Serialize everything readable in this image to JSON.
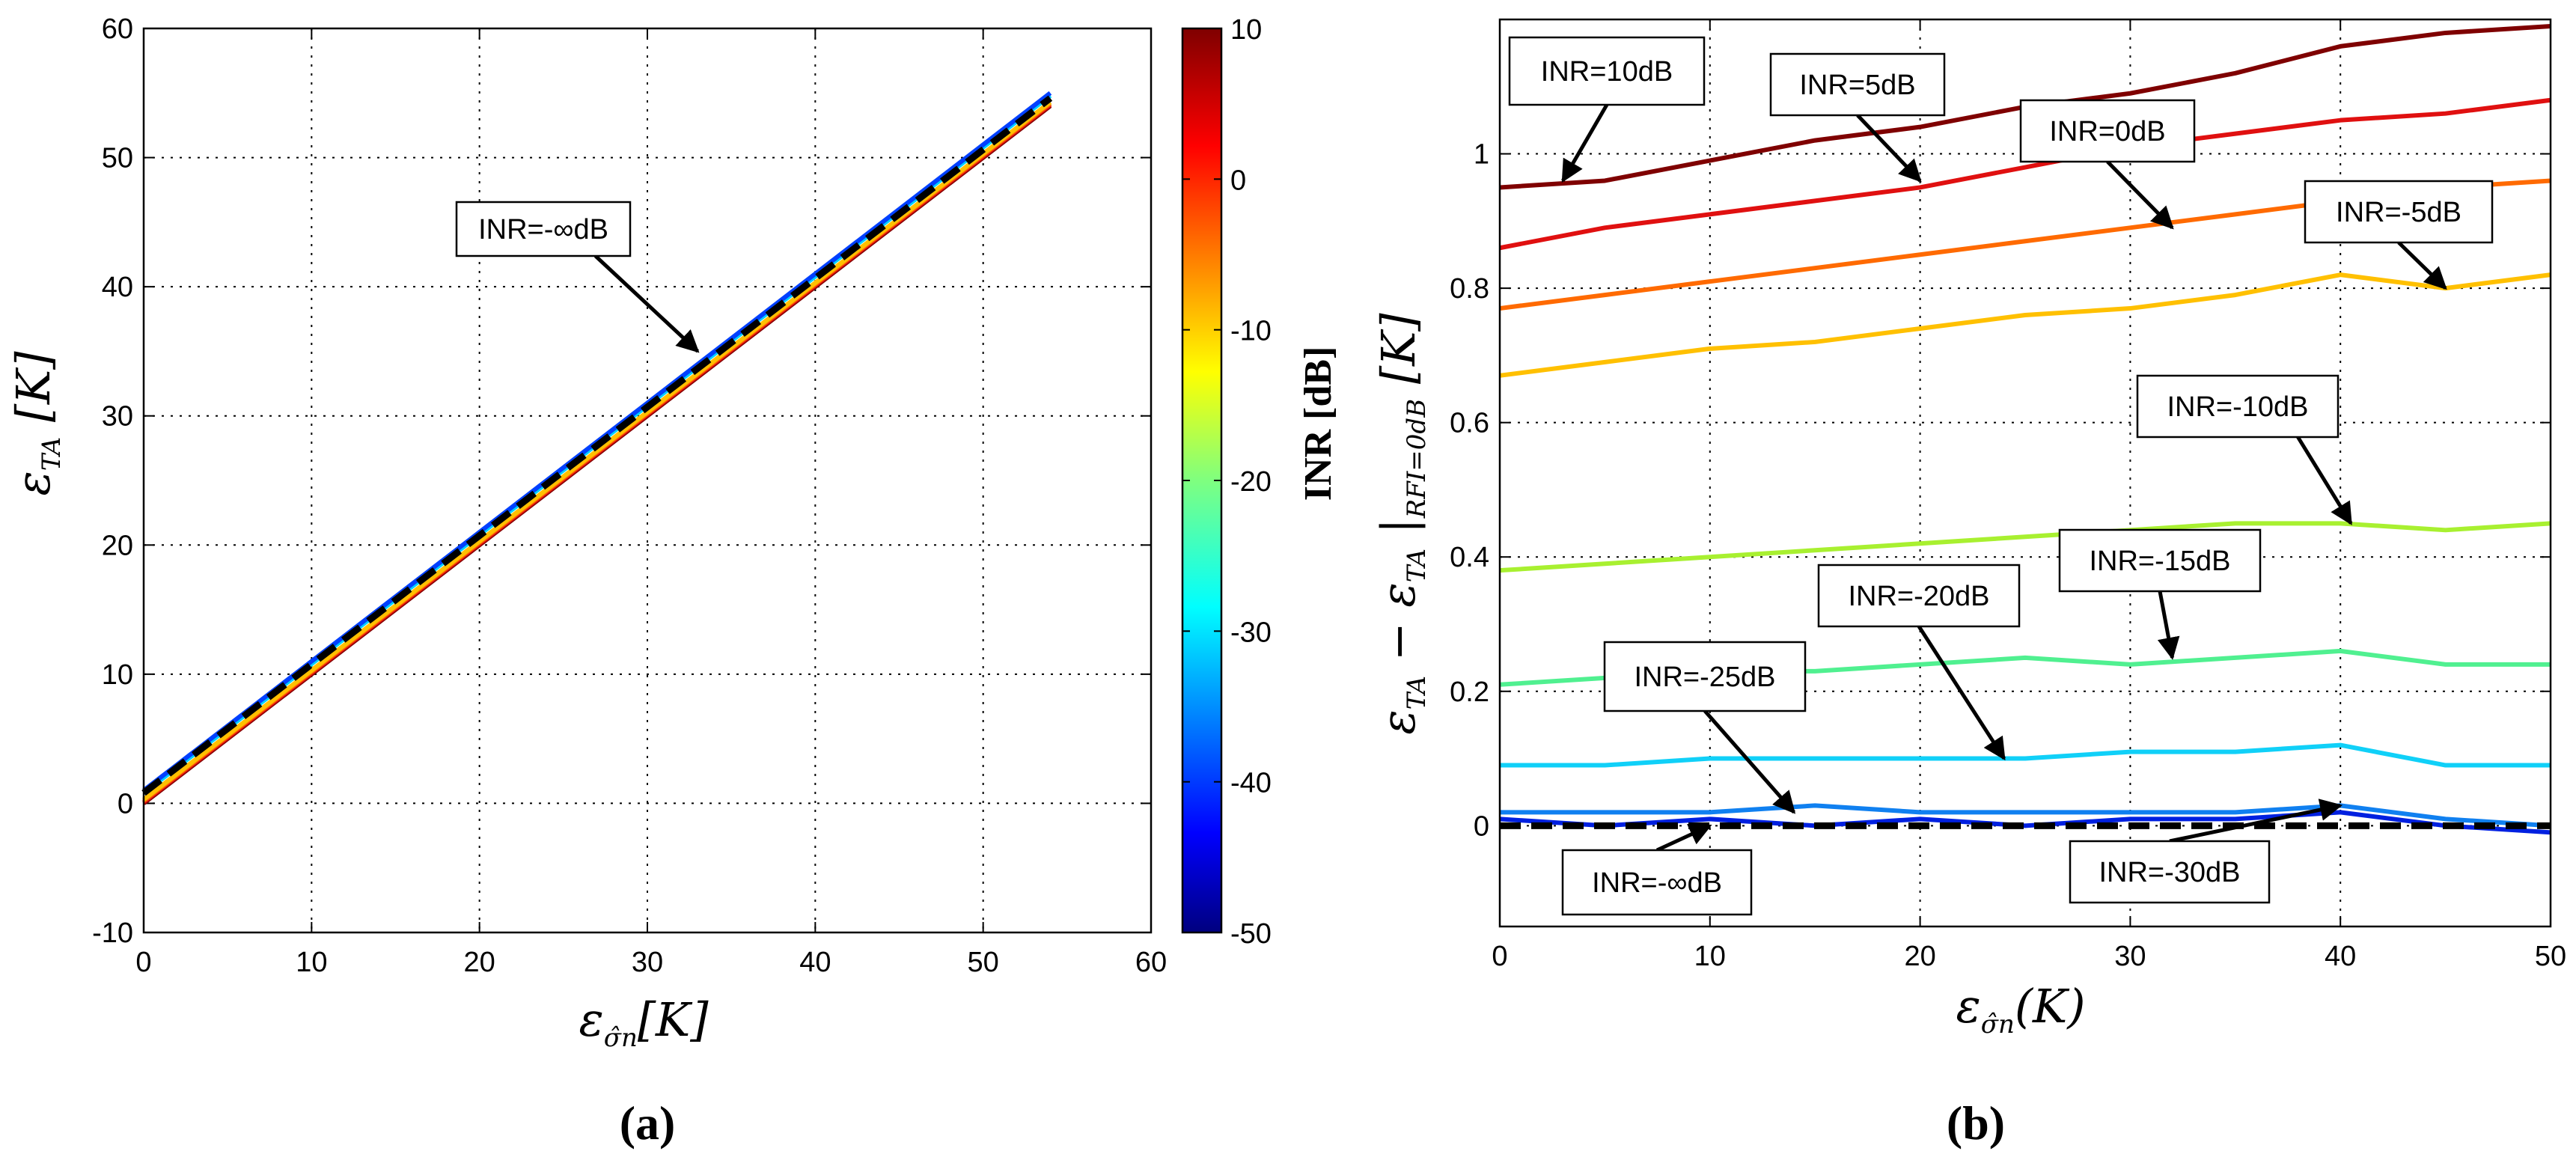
{
  "chart_data": [
    {
      "type": "line",
      "panel_label": "(a)",
      "xlabel": "ε_σn [K]",
      "ylabel": "ε_TA [K]",
      "xlim": [
        0,
        60
      ],
      "ylim": [
        -10,
        60
      ],
      "xticks": [
        "0",
        "10",
        "20",
        "30",
        "40",
        "50",
        "60"
      ],
      "yticks": [
        "-10",
        "0",
        "10",
        "20",
        "30",
        "40",
        "50",
        "60"
      ],
      "grid": true,
      "series": [
        {
          "name": "INR=10dB",
          "color": "#7f0000",
          "x": [
            0,
            54
          ],
          "y": [
            0.0,
            54.0
          ]
        },
        {
          "name": "INR=5dB",
          "color": "#e01010",
          "x": [
            0,
            54
          ],
          "y": [
            0.1,
            54.1
          ]
        },
        {
          "name": "INR=0dB",
          "color": "#ff6a00",
          "x": [
            0,
            54
          ],
          "y": [
            0.2,
            54.2
          ]
        },
        {
          "name": "INR=-5dB",
          "color": "#ffc000",
          "x": [
            0,
            54
          ],
          "y": [
            0.3,
            54.3
          ]
        },
        {
          "name": "INR=-20dB",
          "color": "#00d0ff",
          "x": [
            0,
            54
          ],
          "y": [
            0.8,
            54.8
          ]
        },
        {
          "name": "INR=-30dB",
          "color": "#0040ff",
          "x": [
            0,
            54
          ],
          "y": [
            1.0,
            55.0
          ]
        },
        {
          "name": "INR=-∞dB",
          "color": "#000000",
          "dashed": true,
          "x": [
            0,
            54
          ],
          "y": [
            0.8,
            54.6
          ]
        }
      ],
      "annotations": [
        {
          "text": "INR=-∞dB",
          "target": [
            33,
            35
          ]
        }
      ],
      "colorbar": {
        "label": "INR [dB]",
        "range": [
          -50,
          10
        ],
        "ticks": [
          "10",
          "0",
          "-10",
          "-20",
          "-30",
          "-40",
          "-50"
        ],
        "colormap": "jet"
      }
    },
    {
      "type": "line",
      "panel_label": "(b)",
      "xlabel": "ε_σn (K)",
      "ylabel": "ε_TA − ε_TA |RFI=0dB [K]",
      "ylabel_sub": "RFI=0dB",
      "xlim": [
        0,
        50
      ],
      "ylim": [
        -0.15,
        1.2
      ],
      "xticks": [
        "0",
        "10",
        "20",
        "30",
        "40",
        "50"
      ],
      "yticks": [
        "0",
        "0.2",
        "0.4",
        "0.6",
        "0.8",
        "1"
      ],
      "grid": true,
      "series": [
        {
          "name": "INR=10dB",
          "color": "#7f0000",
          "x": [
            0,
            5,
            10,
            15,
            20,
            25,
            30,
            35,
            40,
            45,
            50
          ],
          "y": [
            0.95,
            0.96,
            0.99,
            1.02,
            1.04,
            1.07,
            1.09,
            1.12,
            1.16,
            1.18,
            1.19
          ]
        },
        {
          "name": "INR=5dB",
          "color": "#e01010",
          "x": [
            0,
            5,
            10,
            15,
            20,
            25,
            30,
            35,
            40,
            45,
            50
          ],
          "y": [
            0.86,
            0.89,
            0.91,
            0.93,
            0.95,
            0.98,
            1.01,
            1.03,
            1.05,
            1.06,
            1.08
          ]
        },
        {
          "name": "INR=0dB",
          "color": "#ff6a00",
          "x": [
            0,
            5,
            10,
            15,
            20,
            25,
            30,
            35,
            40,
            45,
            50
          ],
          "y": [
            0.77,
            0.79,
            0.81,
            0.83,
            0.85,
            0.87,
            0.89,
            0.91,
            0.93,
            0.95,
            0.96
          ]
        },
        {
          "name": "INR=-5dB",
          "color": "#ffc000",
          "x": [
            0,
            5,
            10,
            15,
            20,
            25,
            30,
            35,
            40,
            45,
            50
          ],
          "y": [
            0.67,
            0.69,
            0.71,
            0.72,
            0.74,
            0.76,
            0.77,
            0.79,
            0.82,
            0.8,
            0.82
          ]
        },
        {
          "name": "INR=-10dB",
          "color": "#a8f030",
          "x": [
            0,
            5,
            10,
            15,
            20,
            25,
            30,
            35,
            40,
            45,
            50
          ],
          "y": [
            0.38,
            0.39,
            0.4,
            0.41,
            0.42,
            0.43,
            0.44,
            0.45,
            0.45,
            0.44,
            0.45
          ]
        },
        {
          "name": "INR=-15dB",
          "color": "#50f090",
          "x": [
            0,
            5,
            10,
            15,
            20,
            25,
            30,
            35,
            40,
            45,
            50
          ],
          "y": [
            0.21,
            0.22,
            0.23,
            0.23,
            0.24,
            0.25,
            0.24,
            0.25,
            0.26,
            0.24,
            0.24
          ]
        },
        {
          "name": "INR=-20dB",
          "color": "#10d0f8",
          "x": [
            0,
            5,
            10,
            15,
            20,
            25,
            30,
            35,
            40,
            45,
            50
          ],
          "y": [
            0.09,
            0.09,
            0.1,
            0.1,
            0.1,
            0.1,
            0.11,
            0.11,
            0.12,
            0.09,
            0.09
          ]
        },
        {
          "name": "INR=-25dB",
          "color": "#1080f0",
          "x": [
            0,
            5,
            10,
            15,
            20,
            25,
            30,
            35,
            40,
            45,
            50
          ],
          "y": [
            0.02,
            0.02,
            0.02,
            0.03,
            0.02,
            0.02,
            0.02,
            0.02,
            0.03,
            0.01,
            0.0
          ]
        },
        {
          "name": "INR=-30dB",
          "color": "#0020e0",
          "x": [
            0,
            5,
            10,
            15,
            20,
            25,
            30,
            35,
            40,
            45,
            50
          ],
          "y": [
            0.01,
            0.0,
            0.01,
            0.0,
            0.01,
            0.0,
            0.01,
            0.01,
            0.02,
            0.0,
            -0.01
          ]
        },
        {
          "name": "INR=-∞dB",
          "color": "#000000",
          "dashed": true,
          "x": [
            0,
            50
          ],
          "y": [
            0.0,
            0.0
          ]
        }
      ],
      "annotations": [
        {
          "text": "INR=10dB",
          "target": [
            3,
            0.96
          ]
        },
        {
          "text": "INR=5dB",
          "target": [
            20,
            0.96
          ]
        },
        {
          "text": "INR=0dB",
          "target": [
            32,
            0.89
          ]
        },
        {
          "text": "INR=-5dB",
          "target": [
            45,
            0.8
          ]
        },
        {
          "text": "INR=-10dB",
          "target": [
            40.5,
            0.45
          ]
        },
        {
          "text": "INR=-15dB",
          "target": [
            32,
            0.25
          ]
        },
        {
          "text": "INR=-20dB",
          "target": [
            24,
            0.1
          ]
        },
        {
          "text": "INR=-25dB",
          "target": [
            14,
            0.02
          ]
        },
        {
          "text": "INR=-∞dB",
          "target": [
            10,
            0.0
          ]
        },
        {
          "text": "INR=-30dB",
          "target": [
            40,
            0.03
          ]
        }
      ]
    }
  ]
}
